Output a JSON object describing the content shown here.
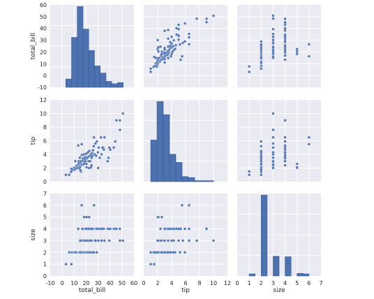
{
  "figure": {
    "panel_bg": "#eaeaf2",
    "grid_color": "#ffffff",
    "mark_color": "#4c72b0",
    "mark_edge": "#ffffff"
  },
  "variables": [
    "total_bill",
    "tip",
    "size"
  ],
  "chart_data": {
    "type": "scatter",
    "kind": "pairplot",
    "grid": true,
    "variables": [
      "total_bill",
      "tip",
      "size"
    ],
    "xlabels": [
      "total_bill",
      "tip",
      "size"
    ],
    "ylabels": [
      "total_bill",
      "tip",
      "size"
    ],
    "ticks": {
      "total_bill": [
        "-10",
        "0",
        "10",
        "20",
        "30",
        "40",
        "50",
        "60"
      ],
      "tip": [
        "0",
        "2",
        "4",
        "6",
        "8",
        "10",
        "12"
      ],
      "size": [
        "0",
        "1",
        "2",
        "3",
        "4",
        "5",
        "6",
        "7"
      ]
    },
    "ranges": {
      "total_bill": [
        -10,
        60
      ],
      "tip": [
        0,
        12
      ],
      "size": [
        0,
        7
      ]
    },
    "histograms": {
      "total_bill": {
        "edges": [
          3,
          7.8,
          12.6,
          17.4,
          22.2,
          27,
          31.8,
          36.6,
          41.4,
          46.2,
          51
        ],
        "counts": [
          7,
          42,
          68,
          49,
          31,
          18,
          12,
          5,
          3,
          4
        ]
      },
      "tip": {
        "edges": [
          1,
          1.9,
          2.8,
          3.7,
          4.6,
          5.5,
          6.4,
          7.3,
          8.2,
          9.1,
          10
        ],
        "counts": [
          41,
          79,
          66,
          27,
          19,
          5,
          4,
          1,
          1,
          1
        ]
      },
      "size": {
        "edges": [
          1,
          1.5,
          2,
          2.5,
          3,
          3.5,
          4,
          4.5,
          5,
          5.5,
          6
        ],
        "counts": [
          4,
          0,
          156,
          0,
          38,
          0,
          37,
          0,
          5,
          4
        ]
      }
    },
    "points": {
      "bill": [
        3.1,
        5.8,
        7.3,
        7.5,
        8.1,
        8.4,
        9.6,
        10.1,
        10.3,
        10.7,
        11.2,
        11.6,
        12.0,
        12.5,
        12.7,
        13.0,
        13.4,
        13.8,
        14.1,
        14.5,
        14.8,
        15.0,
        15.4,
        15.7,
        16.0,
        16.3,
        16.5,
        16.9,
        17.3,
        17.5,
        17.8,
        18.2,
        18.4,
        18.7,
        19.1,
        19.4,
        19.8,
        20.1,
        20.3,
        20.7,
        21.0,
        21.5,
        22.0,
        22.2,
        22.7,
        23.3,
        23.7,
        24.1,
        24.6,
        25.0,
        25.3,
        25.7,
        26.4,
        27.2,
        27.8,
        28.4,
        28.9,
        29.9,
        30.5,
        31.3,
        32.4,
        32.9,
        34.3,
        34.8,
        35.3,
        38.0,
        39.4,
        40.2,
        43.1,
        44.3,
        45.3,
        48.2,
        48.3,
        50.8,
        7.7,
        15.7,
        16.3,
        22.5,
        24.1,
        29.0,
        38.7,
        11.0,
        26.6,
        33.7,
        20.4,
        18.3,
        24.5,
        13.4,
        15.1,
        30.1
      ],
      "tip": [
        1.0,
        1.0,
        1.4,
        1.9,
        1.6,
        1.8,
        2.0,
        2.0,
        1.7,
        1.8,
        1.9,
        2.3,
        2.0,
        2.3,
        2.1,
        2.0,
        2.5,
        3.0,
        2.7,
        2.0,
        3.5,
        2.2,
        2.8,
        3.0,
        2.5,
        3.9,
        2.5,
        3.1,
        3.4,
        2.5,
        3.0,
        4.0,
        3.5,
        2.9,
        3.3,
        3.0,
        3.6,
        4.1,
        2.6,
        3.4,
        3.5,
        4.3,
        3.0,
        3.7,
        4.5,
        3.0,
        4.0,
        3.8,
        3.5,
        4.2,
        3.8,
        4.6,
        5.2,
        4.0,
        5.6,
        3.8,
        5.9,
        4.3,
        5.0,
        3.5,
        6.5,
        4.0,
        5.0,
        4.7,
        6.5,
        3.0,
        5.0,
        4.7,
        5.0,
        5.9,
        9.0,
        9.0,
        7.6,
        10.0,
        1.5,
        1.5,
        5.5,
        2.0,
        2.1,
        5.9,
        3.5,
        3.0,
        6.5,
        5.0,
        2.1,
        2.6,
        2.4,
        5.3,
        1.7,
        2.0
      ],
      "size": [
        1,
        2,
        2,
        2,
        2,
        2,
        2,
        2,
        2,
        2,
        2,
        2,
        2,
        2,
        2,
        2,
        2,
        2,
        2,
        2,
        2,
        3,
        2,
        2,
        3,
        2,
        2,
        4,
        2,
        2,
        3,
        3,
        2,
        3,
        2,
        4,
        2,
        3,
        2,
        4,
        2,
        3,
        2,
        4,
        2,
        3,
        4,
        2,
        3,
        2,
        4,
        4,
        2,
        3,
        3,
        4,
        2,
        4,
        3,
        4,
        4,
        3,
        4,
        4,
        3,
        4,
        3,
        4,
        4,
        4,
        4,
        4,
        3,
        3,
        1,
        2,
        6,
        5,
        3,
        4,
        4,
        2,
        6,
        4,
        5,
        5,
        4,
        4,
        2,
        3
      ]
    }
  }
}
